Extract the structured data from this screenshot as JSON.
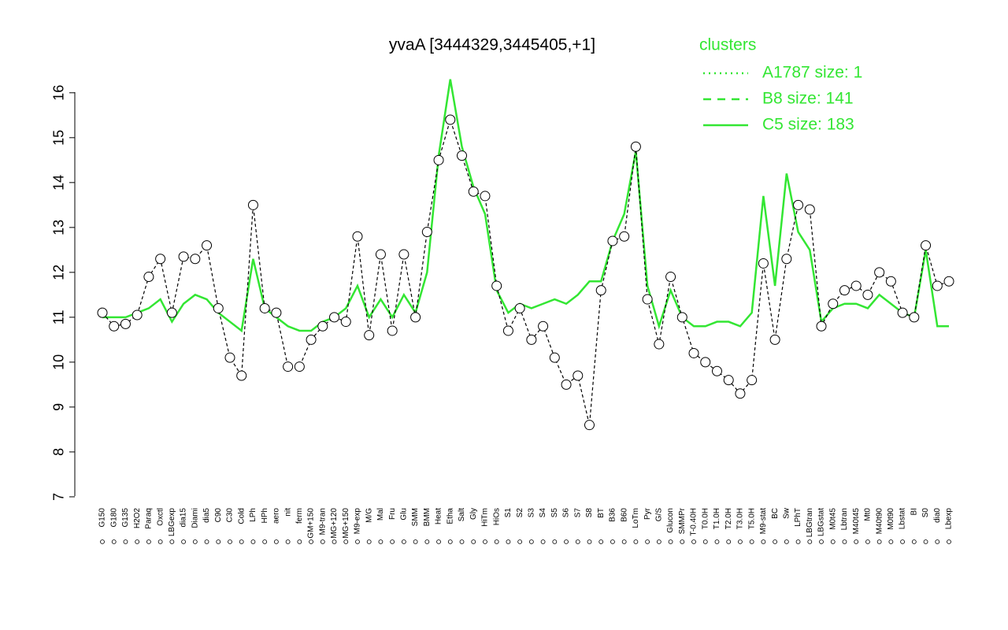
{
  "chart_data": {
    "type": "line",
    "title": "yvaA [3444329,3445405,+1]",
    "categories": [
      "G150",
      "G180",
      "G135",
      "H2O2",
      "Paraq",
      "Oxctl",
      "LBGexp",
      "dia15",
      "Diami",
      "dia5",
      "C90",
      "C30",
      "Cold",
      "LPh",
      "HPh",
      "aero",
      "nit",
      "ferm",
      "GM+150",
      "M9-tran",
      "MG+120",
      "MG+150",
      "M9-exp",
      "M/G",
      "Mal",
      "Fru",
      "Glu",
      "SMM",
      "BMM",
      "Heat",
      "Etha",
      "Salt",
      "Gly",
      "HiTm",
      "HiOs",
      "S1",
      "S2",
      "S3",
      "S4",
      "S5",
      "S6",
      "S7",
      "S8",
      "BT",
      "B36",
      "B60",
      "LoTm",
      "Pyr",
      "G/S",
      "Glucon",
      "SMMPr",
      "T-0.40H",
      "T0.0H",
      "T1.0H",
      "T2.0H",
      "T3.0H",
      "T5.0H",
      "M9-stat",
      "BC",
      "Sw",
      "LPhT",
      "LBGtran",
      "LBGstat",
      "M0t45",
      "Lbtran",
      "M40t45",
      "Mt0",
      "M40t90",
      "M0t90",
      "Lbstat",
      "BI",
      "S0",
      "dia0",
      "Lbexp"
    ],
    "series": [
      {
        "color": "#000000",
        "values": [
          11.1,
          10.8,
          10.85,
          11.05,
          11.9,
          12.3,
          11.1,
          12.35,
          12.3,
          12.6,
          11.2,
          10.1,
          9.7,
          13.5,
          11.2,
          11.1,
          9.9,
          9.9,
          10.5,
          10.8,
          11.0,
          10.9,
          12.8,
          10.6,
          12.4,
          10.7,
          12.4,
          11.0,
          12.9,
          14.5,
          15.4,
          14.6,
          13.8,
          13.7,
          11.7,
          10.7,
          11.2,
          10.5,
          10.8,
          10.1,
          9.5,
          9.7,
          8.6,
          11.6,
          12.7,
          12.8,
          14.8,
          11.4,
          10.4,
          11.9,
          11.0,
          10.2,
          10.0,
          9.8,
          9.6,
          9.3,
          9.6,
          12.2,
          10.5,
          12.3,
          13.5,
          13.4,
          10.8,
          11.3,
          11.6,
          11.7,
          11.5,
          12.0,
          11.8,
          11.1,
          11.0,
          12.6,
          11.7,
          11.8
        ]
      },
      {
        "color": "#33e633",
        "values": [
          11.0,
          11.0,
          11.0,
          11.1,
          11.2,
          11.4,
          10.9,
          11.3,
          11.5,
          11.4,
          11.1,
          10.9,
          10.7,
          12.3,
          11.2,
          11.0,
          10.8,
          10.7,
          10.7,
          10.9,
          11.0,
          11.2,
          11.7,
          11.0,
          11.4,
          11.0,
          11.5,
          11.1,
          12.0,
          14.6,
          16.3,
          14.8,
          13.9,
          13.3,
          11.6,
          11.1,
          11.3,
          11.2,
          11.3,
          11.4,
          11.3,
          11.5,
          11.8,
          11.8,
          12.7,
          13.3,
          14.7,
          11.7,
          10.8,
          11.6,
          11.0,
          10.8,
          10.8,
          10.9,
          10.9,
          10.8,
          11.1,
          13.7,
          11.7,
          14.2,
          12.9,
          12.5,
          10.9,
          11.2,
          11.3,
          11.3,
          11.2,
          11.5,
          11.3,
          11.1,
          11.0,
          12.5,
          10.8,
          10.8
        ]
      }
    ],
    "legend": {
      "title": "clusters",
      "entries": [
        {
          "label": "A1787 size: 1",
          "dash": "2 5"
        },
        {
          "label": "B8 size: 141",
          "dash": "10 8"
        },
        {
          "label": "C5 size: 183",
          "dash": ""
        }
      ]
    },
    "ylim": [
      6.7,
      16.4
    ],
    "yticks": [
      7,
      8,
      9,
      10,
      11,
      12,
      13,
      14,
      15,
      16
    ]
  }
}
